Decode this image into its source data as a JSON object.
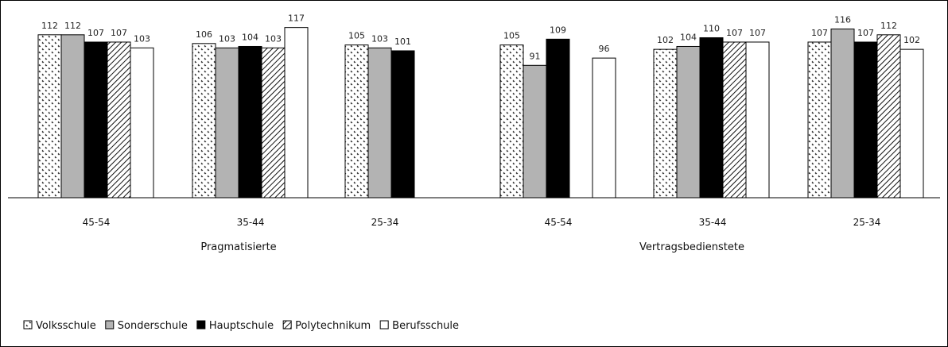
{
  "chart_data": {
    "type": "bar",
    "title": "",
    "ylabel": "",
    "ylim": [
      0,
      125
    ],
    "groups": [
      {
        "label": "Pragmatisierte",
        "categories": [
          "45-54",
          "35-44",
          "25-34"
        ]
      },
      {
        "label": "Vertragsbedienstete",
        "categories": [
          "45-54",
          "35-44",
          "25-34"
        ]
      }
    ],
    "series": [
      {
        "name": "Volksschule",
        "pattern": "dots",
        "color": "#ffffff",
        "values": [
          112,
          106,
          105,
          105,
          102,
          107
        ]
      },
      {
        "name": "Sonderschule",
        "pattern": "solid",
        "color": "#b3b3b3",
        "values": [
          112,
          103,
          103,
          91,
          104,
          116
        ]
      },
      {
        "name": "Hauptschule",
        "pattern": "solid",
        "color": "#000000",
        "values": [
          107,
          104,
          101,
          109,
          110,
          107
        ]
      },
      {
        "name": "Polytechnikum",
        "pattern": "hatch",
        "color": "#ffffff",
        "values": [
          107,
          103,
          null,
          null,
          107,
          112
        ]
      },
      {
        "name": "Berufsschule",
        "pattern": "solid",
        "color": "#ffffff",
        "values": [
          103,
          117,
          null,
          96,
          107,
          102
        ]
      }
    ],
    "legend": "bottom-left",
    "grid": false
  }
}
